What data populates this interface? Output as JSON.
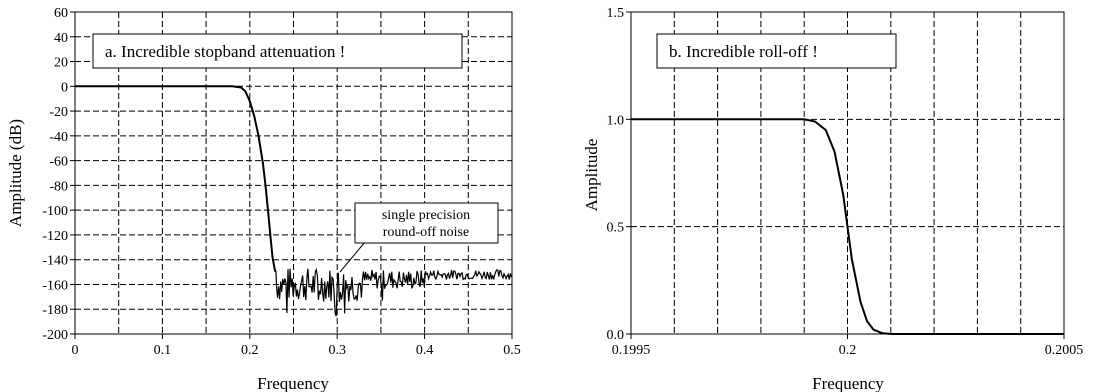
{
  "chart_data": [
    {
      "type": "line",
      "title": "a.  Incredible stopband attenuation !",
      "xlabel": "Frequency",
      "ylabel": "Amplitude (dB)",
      "xlim": [
        0,
        0.5
      ],
      "ylim": [
        -200,
        60
      ],
      "xticks": [
        "0",
        "0.1",
        "0.2",
        "0.3",
        "0.4",
        "0.5"
      ],
      "yticks": [
        "60",
        "40",
        "20",
        "0",
        "-20",
        "-40",
        "-60",
        "-80",
        "-100",
        "-120",
        "-140",
        "-160",
        "-180",
        "-200"
      ],
      "grid": "dashed",
      "annotation": {
        "lines": [
          "single precision",
          "round-off noise"
        ]
      },
      "series": [
        {
          "x": [
            0,
            0.1,
            0.15,
            0.18,
            0.19,
            0.195,
            0.2,
            0.205,
            0.21,
            0.215,
            0.218,
            0.221,
            0.224,
            0.226,
            0.228,
            0.229,
            0.23
          ],
          "y": [
            0,
            0,
            0,
            0,
            -1,
            -4,
            -12,
            -24,
            -40,
            -62,
            -80,
            -102,
            -124,
            -138,
            -146,
            -149,
            -150
          ]
        }
      ]
    },
    {
      "type": "line",
      "title": "b.  Incredible roll-off !",
      "xlabel": "Frequency",
      "ylabel": "Amplitude",
      "xlim": [
        0.1995,
        0.2005
      ],
      "ylim": [
        0,
        1.5
      ],
      "xticks": [
        "0.1995",
        "0.2",
        "0.2005"
      ],
      "yticks": [
        "1.5",
        "1.0",
        "0.5",
        "0.0"
      ],
      "grid": "dashed",
      "series": [
        {
          "x": [
            0.1995,
            0.19985,
            0.1999,
            0.199925,
            0.19995,
            0.19997,
            0.19999,
            0.2,
            0.20001,
            0.20003,
            0.200045,
            0.20006,
            0.20008,
            0.2001,
            0.2005
          ],
          "y": [
            1,
            1,
            1,
            0.99,
            0.95,
            0.85,
            0.65,
            0.5,
            0.35,
            0.15,
            0.06,
            0.02,
            0.004,
            0,
            0
          ]
        }
      ]
    }
  ]
}
